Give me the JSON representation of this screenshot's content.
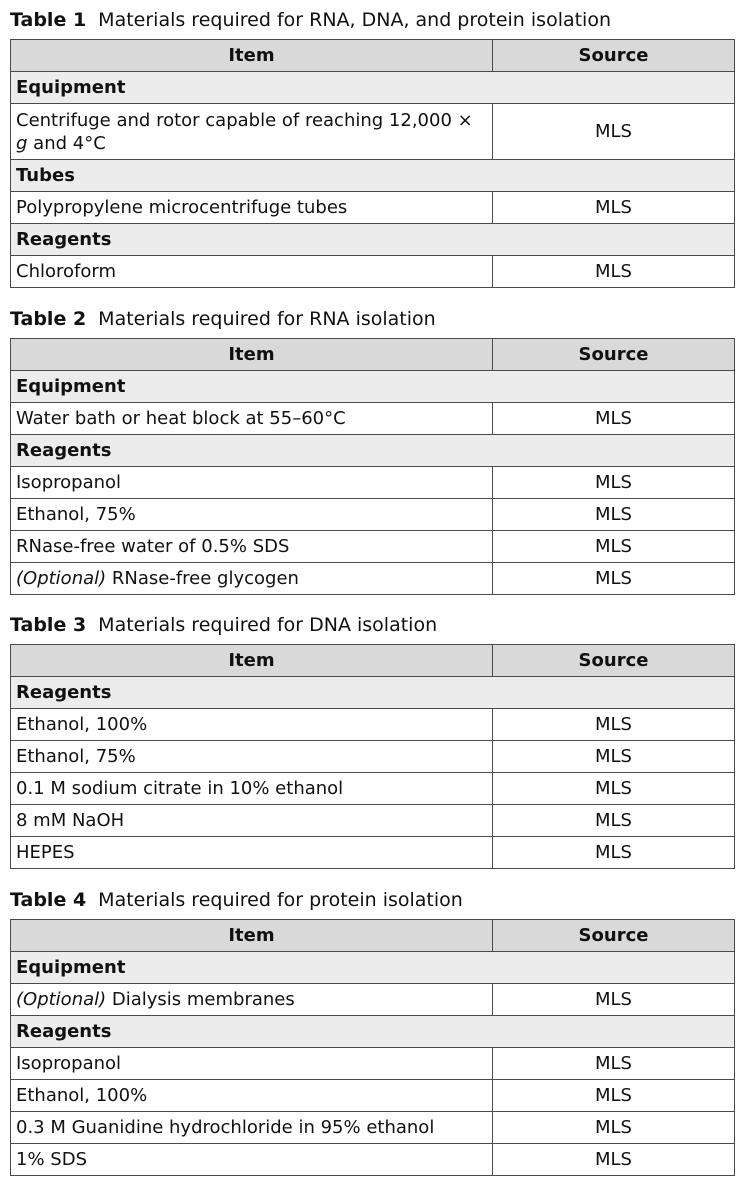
{
  "tables": [
    {
      "number": "Table 1",
      "title": "Materials required for RNA, DNA, and protein isolation",
      "headers": [
        "Item",
        "Source"
      ],
      "rows": [
        {
          "type": "section",
          "label": "Equipment"
        },
        {
          "type": "item",
          "parts": [
            {
              "text": "Centrifuge and rotor capable of reaching 12,000 × "
            },
            {
              "text": "g",
              "italic": true
            },
            {
              "text": " and 4°C"
            }
          ],
          "source": "MLS",
          "tall": true
        },
        {
          "type": "section",
          "label": "Tubes"
        },
        {
          "type": "item",
          "parts": [
            {
              "text": "Polypropylene microcentrifuge tubes"
            }
          ],
          "source": "MLS"
        },
        {
          "type": "section",
          "label": "Reagents"
        },
        {
          "type": "item",
          "parts": [
            {
              "text": "Chloroform"
            }
          ],
          "source": "MLS"
        }
      ]
    },
    {
      "number": "Table 2",
      "title": "Materials required for RNA isolation",
      "headers": [
        "Item",
        "Source"
      ],
      "rows": [
        {
          "type": "section",
          "label": "Equipment"
        },
        {
          "type": "item",
          "parts": [
            {
              "text": "Water bath or heat block at 55–60°C"
            }
          ],
          "source": "MLS"
        },
        {
          "type": "section",
          "label": "Reagents"
        },
        {
          "type": "item",
          "parts": [
            {
              "text": "Isopropanol"
            }
          ],
          "source": "MLS"
        },
        {
          "type": "item",
          "parts": [
            {
              "text": "Ethanol, 75%"
            }
          ],
          "source": "MLS"
        },
        {
          "type": "item",
          "parts": [
            {
              "text": "RNase-free water of 0.5% SDS"
            }
          ],
          "source": "MLS"
        },
        {
          "type": "item",
          "parts": [
            {
              "text": "(Optional)",
              "italic": true
            },
            {
              "text": " RNase-free glycogen"
            }
          ],
          "source": "MLS"
        }
      ]
    },
    {
      "number": "Table 3",
      "title": "Materials required for DNA isolation",
      "headers": [
        "Item",
        "Source"
      ],
      "rows": [
        {
          "type": "section",
          "label": "Reagents"
        },
        {
          "type": "item",
          "parts": [
            {
              "text": "Ethanol, 100%"
            }
          ],
          "source": "MLS"
        },
        {
          "type": "item",
          "parts": [
            {
              "text": "Ethanol, 75%"
            }
          ],
          "source": "MLS"
        },
        {
          "type": "item",
          "parts": [
            {
              "text": "0.1 M sodium citrate in 10% ethanol"
            }
          ],
          "source": "MLS"
        },
        {
          "type": "item",
          "parts": [
            {
              "text": "8 mM NaOH"
            }
          ],
          "source": "MLS"
        },
        {
          "type": "item",
          "parts": [
            {
              "text": "HEPES"
            }
          ],
          "source": "MLS"
        }
      ]
    },
    {
      "number": "Table 4",
      "title": "Materials required for protein isolation",
      "headers": [
        "Item",
        "Source"
      ],
      "rows": [
        {
          "type": "section",
          "label": "Equipment"
        },
        {
          "type": "item",
          "parts": [
            {
              "text": "(Optional)",
              "italic": true
            },
            {
              "text": " Dialysis membranes"
            }
          ],
          "source": "MLS"
        },
        {
          "type": "section",
          "label": "Reagents"
        },
        {
          "type": "item",
          "parts": [
            {
              "text": "Isopropanol"
            }
          ],
          "source": "MLS"
        },
        {
          "type": "item",
          "parts": [
            {
              "text": "Ethanol, 100%"
            }
          ],
          "source": "MLS"
        },
        {
          "type": "item",
          "parts": [
            {
              "text": "0.3 M Guanidine hydrochloride in 95% ethanol"
            }
          ],
          "source": "MLS"
        },
        {
          "type": "item",
          "parts": [
            {
              "text": "1% SDS"
            }
          ],
          "source": "MLS"
        }
      ]
    }
  ]
}
